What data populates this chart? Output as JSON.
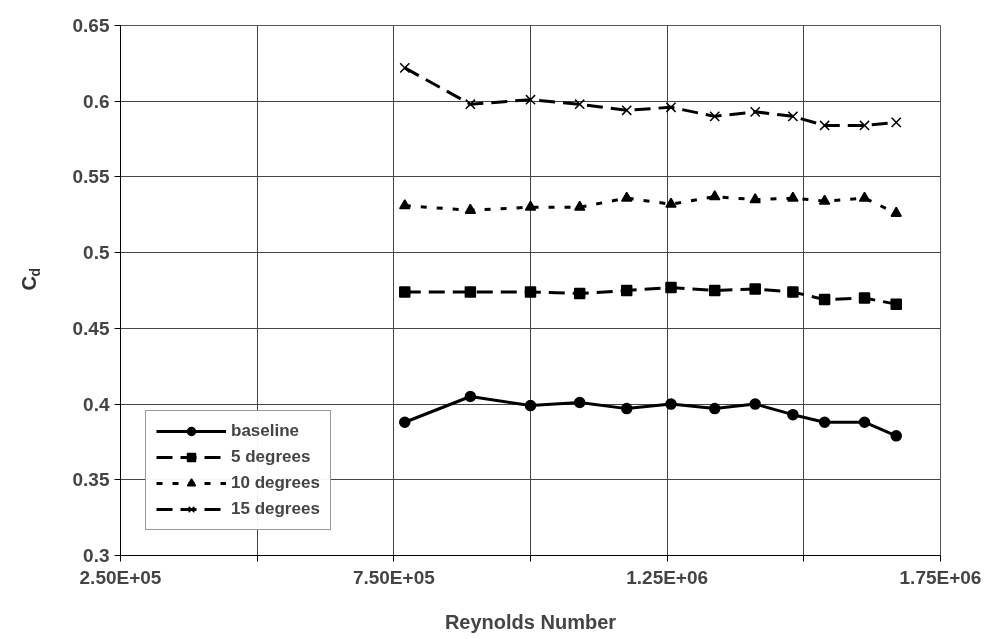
{
  "chart_data": {
    "type": "line",
    "xlabel": "Reynolds Number",
    "ylabel": "C$_{d}$",
    "xlim": [
      250000,
      1750000
    ],
    "ylim": [
      0.3,
      0.65
    ],
    "xticks": [
      {
        "value": 250000,
        "label": "2.50E+05"
      },
      {
        "value": 500000,
        "label": null
      },
      {
        "value": 750000,
        "label": "7.50E+05"
      },
      {
        "value": 1000000,
        "label": null
      },
      {
        "value": 1250000,
        "label": "1.25E+06"
      },
      {
        "value": 1500000,
        "label": null
      },
      {
        "value": 1750000,
        "label": "1.75E+06"
      }
    ],
    "yticks": [
      0.3,
      0.35,
      0.4,
      0.45,
      0.5,
      0.55,
      0.6,
      0.65
    ],
    "x": [
      770000,
      890000,
      1000000,
      1090000,
      1176000,
      1257000,
      1337000,
      1411000,
      1480000,
      1538000,
      1611000,
      1669000
    ],
    "grid": true,
    "legend": "bottom left",
    "series": [
      {
        "name": "baseline",
        "color": "#000000",
        "marker": "circle",
        "line_style": "solid",
        "values": [
          0.388,
          0.405,
          0.399,
          0.401,
          0.397,
          0.4,
          0.397,
          0.4,
          0.393,
          0.388,
          0.388,
          0.379
        ]
      },
      {
        "name": "5 degrees",
        "color": "#000000",
        "marker": "square",
        "line_style": "dashed",
        "values": [
          0.474,
          0.474,
          0.474,
          0.473,
          0.475,
          0.477,
          0.475,
          0.476,
          0.474,
          0.469,
          0.47,
          0.466
        ]
      },
      {
        "name": "10 degrees",
        "color": "#000000",
        "marker": "triangle",
        "line_style": "dotted",
        "values": [
          0.531,
          0.528,
          0.53,
          0.53,
          0.536,
          0.532,
          0.537,
          0.535,
          0.536,
          0.534,
          0.536,
          0.526
        ]
      },
      {
        "name": "15 degrees",
        "color": "#000000",
        "marker": "cross",
        "line_style": "dashed",
        "values": [
          0.622,
          0.598,
          0.601,
          0.598,
          0.594,
          0.596,
          0.59,
          0.593,
          0.59,
          0.584,
          0.584,
          0.586
        ]
      }
    ]
  }
}
